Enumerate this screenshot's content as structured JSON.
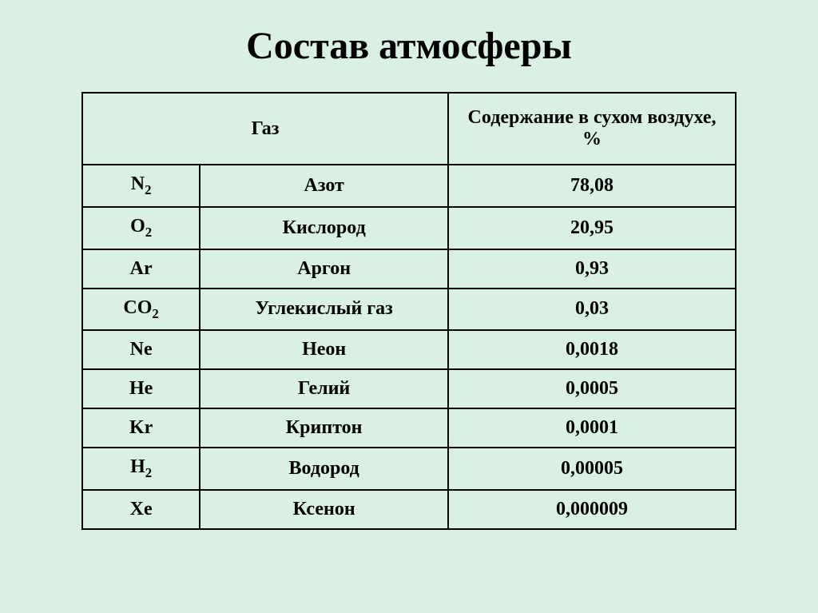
{
  "title": "Состав атмосферы",
  "table": {
    "background_color": "#d9f0e3",
    "border_color": "#000000",
    "text_color": "#000000",
    "title_fontsize": 48,
    "header_fontsize": 24,
    "cell_fontsize": 24,
    "headers": {
      "gas": "Газ",
      "percent": "Содержание в сухом воздухе, %"
    },
    "rows": [
      {
        "symbol": "N",
        "subscript": "2",
        "name": "Азот",
        "percent": "78,08"
      },
      {
        "symbol": "O",
        "subscript": "2",
        "name": "Кислород",
        "percent": "20,95"
      },
      {
        "symbol": "Ar",
        "subscript": "",
        "name": "Аргон",
        "percent": "0,93"
      },
      {
        "symbol": "CO",
        "subscript": "2",
        "name": "Углекислый газ",
        "percent": "0,03"
      },
      {
        "symbol": "Ne",
        "subscript": "",
        "name": "Неон",
        "percent": "0,0018"
      },
      {
        "symbol": "He",
        "subscript": "",
        "name": "Гелий",
        "percent": "0,0005"
      },
      {
        "symbol": "Kr",
        "subscript": "",
        "name": "Криптон",
        "percent": "0,0001"
      },
      {
        "symbol": "H",
        "subscript": "2",
        "name": "Водород",
        "percent": "0,00005"
      },
      {
        "symbol": "Xe",
        "subscript": "",
        "name": "Ксенон",
        "percent": "0,000009"
      }
    ]
  }
}
